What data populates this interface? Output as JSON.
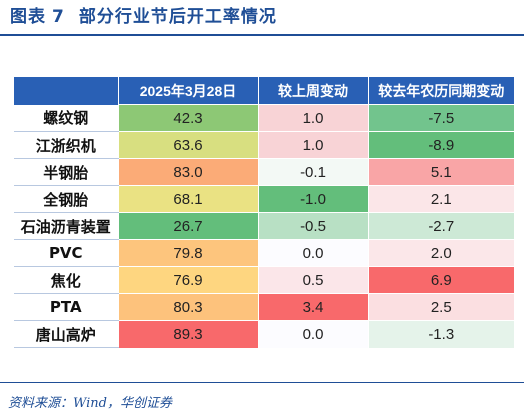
{
  "title": {
    "prefix": "图表",
    "number": "7",
    "text": "部分行业节后开工率情况"
  },
  "table": {
    "columns": [
      "",
      "2025年3月28日",
      "较上周变动",
      "较去年农历同期变动"
    ],
    "rows": [
      {
        "label": "螺纹钢",
        "values": [
          "42.3",
          "1.0",
          "-7.5"
        ],
        "colors": [
          "#8dc875",
          "#f8d3d6",
          "#72c48d"
        ]
      },
      {
        "label": "江浙织机",
        "values": [
          "63.6",
          "1.0",
          "-8.9"
        ],
        "colors": [
          "#d8df80",
          "#f8d3d6",
          "#63be7b"
        ]
      },
      {
        "label": "半钢胎",
        "values": [
          "83.0",
          "-0.1",
          "5.1"
        ],
        "colors": [
          "#fbab77",
          "#f3f9f5",
          "#f9a5a6"
        ]
      },
      {
        "label": "全钢胎",
        "values": [
          "68.1",
          "-1.0",
          "2.1"
        ],
        "colors": [
          "#eae283",
          "#63be7b",
          "#fbe6e8"
        ]
      },
      {
        "label": "石油沥青装置",
        "values": [
          "26.7",
          "-0.5",
          "-2.7"
        ],
        "colors": [
          "#63be7b",
          "#b8e0c4",
          "#cde9d6"
        ]
      },
      {
        "label": "PVC",
        "values": [
          "79.8",
          "0.0",
          "2.0"
        ],
        "colors": [
          "#fdc57d",
          "#fcfcff",
          "#fbe7e9"
        ]
      },
      {
        "label": "焦化",
        "values": [
          "76.9",
          "0.5",
          "6.9"
        ],
        "colors": [
          "#fed680",
          "#fbe6e9",
          "#f8696b"
        ]
      },
      {
        "label": "PTA",
        "values": [
          "80.3",
          "3.4",
          "2.5"
        ],
        "colors": [
          "#fdc27c",
          "#f8696b",
          "#fbdfe1"
        ]
      },
      {
        "label": "唐山高炉",
        "values": [
          "89.3",
          "0.0",
          "-1.3"
        ],
        "colors": [
          "#f8696b",
          "#fcfcff",
          "#e5f3ea"
        ]
      }
    ]
  },
  "source": "资料来源：Wind，华创证券"
}
